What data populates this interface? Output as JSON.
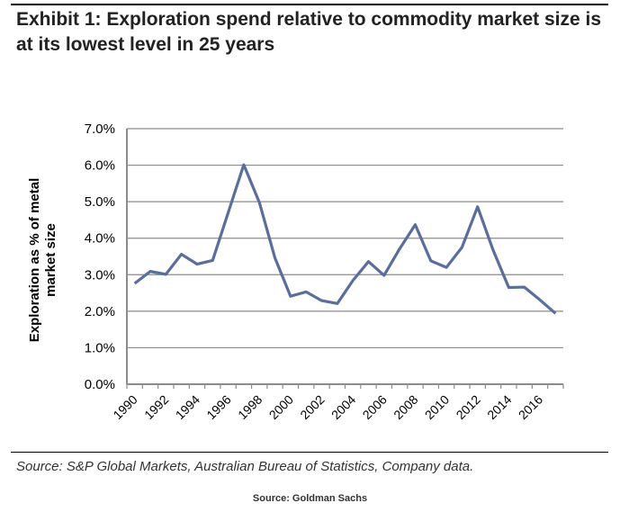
{
  "title": "Exhibit 1: Exploration spend relative to commodity market size is at its lowest level in 25 years",
  "source_note": "Source: S&P Global Markets, Australian Bureau of Statistics, Company data.",
  "source_footer": "Source: Goldman Sachs",
  "chart_data": {
    "type": "line",
    "title": "",
    "xlabel": "",
    "ylabel": "Exploration as % of metal market size",
    "ylim": [
      0,
      7
    ],
    "yticks": [
      "0.0%",
      "1.0%",
      "2.0%",
      "3.0%",
      "4.0%",
      "5.0%",
      "6.0%",
      "7.0%"
    ],
    "xtick_labels": [
      "1990",
      "1992",
      "1994",
      "1996",
      "1998",
      "2000",
      "2002",
      "2004",
      "2006",
      "2008",
      "2010",
      "2012",
      "2014",
      "2016"
    ],
    "grid": "horizontal",
    "line_color": "#5a6e9e",
    "x": [
      1990,
      1991,
      1992,
      1993,
      1994,
      1995,
      1996,
      1997,
      1998,
      1999,
      2000,
      2001,
      2002,
      2003,
      2004,
      2005,
      2006,
      2007,
      2008,
      2009,
      2010,
      2011,
      2012,
      2013,
      2014,
      2015,
      2016,
      2017
    ],
    "values": [
      2.76,
      3.09,
      3.01,
      3.56,
      3.29,
      3.39,
      4.7,
      6.01,
      4.98,
      3.46,
      2.41,
      2.53,
      2.29,
      2.21,
      2.84,
      3.36,
      2.98,
      3.71,
      4.37,
      3.38,
      3.2,
      3.75,
      4.86,
      3.67,
      2.65,
      2.66,
      2.31,
      1.94
    ]
  }
}
